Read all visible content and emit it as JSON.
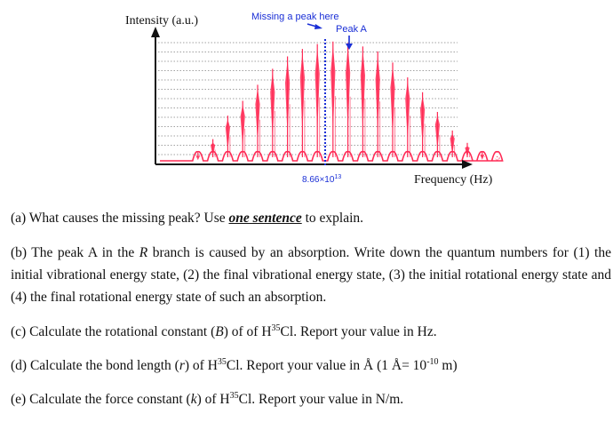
{
  "chart_data": {
    "type": "line",
    "ylabel": "Intensity (a.u.)",
    "xlabel": "Frequency (Hz)",
    "center_tick_label": "8.66×10",
    "center_tick_exp": "13",
    "annotations": {
      "missing": "Missing a peak here",
      "peak_a": "Peak A"
    },
    "series_color": "#ff2a55",
    "annotation_color": "#1a2fd6",
    "p_branch_heights": [
      0.08,
      0.19,
      0.38,
      0.5,
      0.63,
      0.76,
      0.86,
      0.92,
      0.96
    ],
    "r_branch_heights": [
      0.98,
      0.97,
      0.94,
      0.9,
      0.81,
      0.69,
      0.57,
      0.41,
      0.26,
      0.16,
      0.09,
      0.05
    ],
    "peak_a_index": 1,
    "grid": true
  },
  "questions": {
    "a_pre": "(a) What causes the missing peak? Use ",
    "a_ul": "one sentence",
    "a_post": " to explain.",
    "b_1": "(b) The peak A in the ",
    "b_R": "R",
    "b_2": " branch is caused by an absorption. Write down the quantum numbers for (1) the initial vibrational energy state, (2) the final vibrational energy state, (3) the initial rotational energy state and (4) the final rotational energy state of such an absorption.",
    "c_1": "(c) Calculate the rotational constant (",
    "c_B": "B",
    "c_2": ") of of H",
    "c_sup": "35",
    "c_3": "Cl. Report your value in Hz.",
    "d_1": "(d) Calculate the bond length (",
    "d_r": "r",
    "d_2": ") of H",
    "d_sup": "35",
    "d_3": "Cl. Report your value in Å (1 Å= 10",
    "d_exp": "-10",
    "d_4": " m)",
    "e_1": "(e) Calculate the force constant (",
    "e_k": "k",
    "e_2": ") of H",
    "e_sup": "35",
    "e_3": "Cl. Report your value in N/m."
  }
}
